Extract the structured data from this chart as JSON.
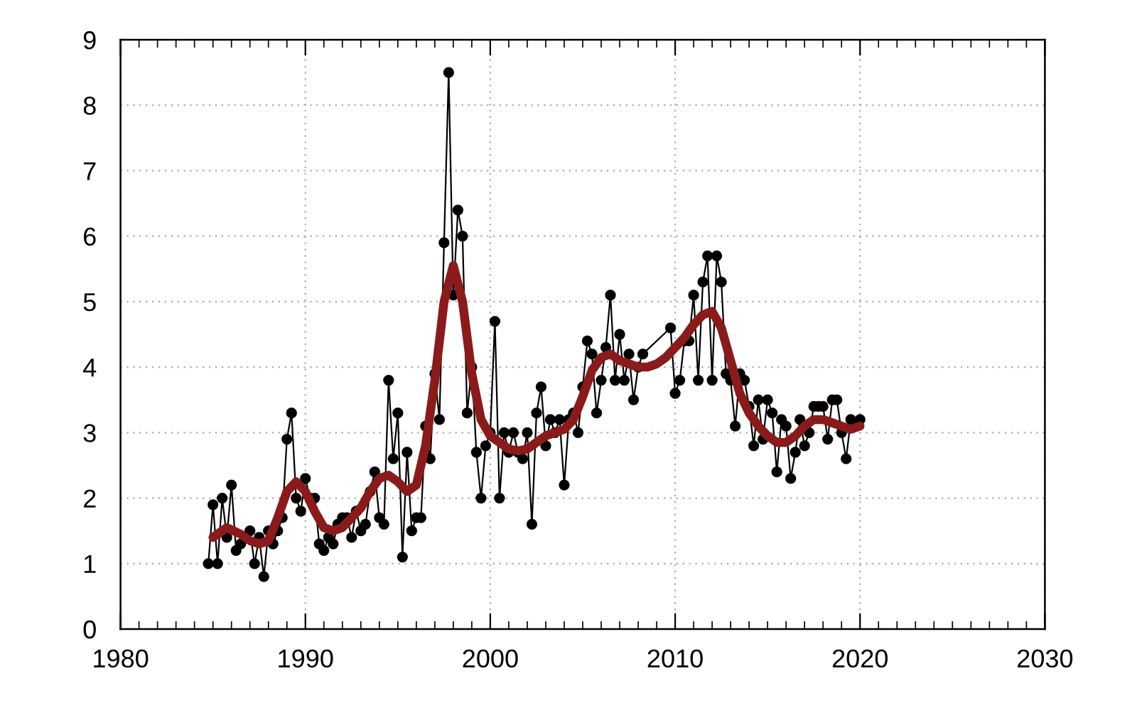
{
  "chart_data": {
    "type": "line",
    "xlim": [
      1980,
      2030
    ],
    "xticks": [
      1980,
      1990,
      2000,
      2010,
      2020,
      2030
    ],
    "ylim": [
      0,
      9
    ],
    "yticks": [
      0,
      1,
      2,
      3,
      4,
      5,
      6,
      7,
      8,
      9
    ],
    "grid": true,
    "legend": false,
    "series": [
      {
        "color": "#000000",
        "marker": "circle",
        "line_style": "solid",
        "x": [
          1984.75,
          1985,
          1985.25,
          1985.5,
          1985.75,
          1986,
          1986.25,
          1986.5,
          1986.75,
          1987,
          1987.25,
          1987.5,
          1987.75,
          1988,
          1988.25,
          1988.5,
          1988.75,
          1989,
          1989.25,
          1989.5,
          1989.75,
          1990,
          1990.25,
          1990.5,
          1990.75,
          1991,
          1991.25,
          1991.5,
          1991.75,
          1992,
          1992.25,
          1992.5,
          1992.75,
          1993,
          1993.25,
          1993.5,
          1993.75,
          1994,
          1994.25,
          1994.5,
          1994.75,
          1995,
          1995.25,
          1995.5,
          1995.75,
          1996,
          1996.25,
          1996.5,
          1996.75,
          1997,
          1997.25,
          1997.5,
          1997.75,
          1998,
          1998.25,
          1998.5,
          1998.75,
          1999,
          1999.25,
          1999.5,
          1999.75,
          2000,
          2000.25,
          2000.5,
          2000.75,
          2001,
          2001.25,
          2001.5,
          2001.75,
          2002,
          2002.25,
          2002.5,
          2002.75,
          2003,
          2003.25,
          2003.5,
          2003.75,
          2004,
          2004.25,
          2004.5,
          2004.75,
          2005,
          2005.25,
          2005.5,
          2005.75,
          2006,
          2006.25,
          2006.5,
          2006.75,
          2007,
          2007.25,
          2007.5,
          2007.75,
          2008,
          2008.25,
          2009.75,
          2010,
          2010.25,
          2010.5,
          2010.75,
          2011,
          2011.25,
          2011.5,
          2011.75,
          2012,
          2012.25,
          2012.5,
          2012.75,
          2013,
          2013.25,
          2013.5,
          2013.75,
          2014,
          2014.25,
          2014.5,
          2014.75,
          2015,
          2015.25,
          2015.5,
          2015.75,
          2016,
          2016.25,
          2016.5,
          2016.75,
          2017,
          2017.25,
          2017.5,
          2017.75,
          2018,
          2018.25,
          2018.5,
          2018.75,
          2019,
          2019.25,
          2019.5,
          2019.75,
          2020
        ],
        "values": [
          1.0,
          1.9,
          1.0,
          2.0,
          1.4,
          2.2,
          1.2,
          1.3,
          1.4,
          1.5,
          1.0,
          1.4,
          0.8,
          1.5,
          1.3,
          1.5,
          1.7,
          2.9,
          3.3,
          2.0,
          1.8,
          2.3,
          2.0,
          2.0,
          1.3,
          1.2,
          1.4,
          1.3,
          1.6,
          1.7,
          1.7,
          1.4,
          1.8,
          1.5,
          1.6,
          2.1,
          2.4,
          1.7,
          1.6,
          3.8,
          2.6,
          3.3,
          1.1,
          2.7,
          1.5,
          1.7,
          1.7,
          3.1,
          2.6,
          3.9,
          3.2,
          5.9,
          8.5,
          5.1,
          6.4,
          6.0,
          3.3,
          4.0,
          2.7,
          2.0,
          2.8,
          3.0,
          4.7,
          2.0,
          3.0,
          2.7,
          3.0,
          2.7,
          2.6,
          3.0,
          1.6,
          3.3,
          3.7,
          2.8,
          3.2,
          3.0,
          3.2,
          2.2,
          3.2,
          3.3,
          3.0,
          3.7,
          4.4,
          4.2,
          3.3,
          3.8,
          4.3,
          5.1,
          3.8,
          4.5,
          3.8,
          4.2,
          3.5,
          4.0,
          4.2,
          4.6,
          3.6,
          3.8,
          4.4,
          4.4,
          5.1,
          3.8,
          5.3,
          5.7,
          3.8,
          5.7,
          5.3,
          3.9,
          3.8,
          3.1,
          3.9,
          3.8,
          3.4,
          2.8,
          3.5,
          2.9,
          3.5,
          3.3,
          2.4,
          3.2,
          3.1,
          2.3,
          2.7,
          3.2,
          2.8,
          3.0,
          3.4,
          3.4,
          3.4,
          2.9,
          3.5,
          3.5,
          3.0,
          2.6,
          3.2,
          3.1,
          3.2
        ]
      },
      {
        "color": "#8b1a1a",
        "marker": "none",
        "line_style": "solid",
        "x": [
          1985,
          1985.75,
          1986.5,
          1987,
          1987.5,
          1988,
          1988.5,
          1989,
          1989.5,
          1990,
          1990.5,
          1991,
          1991.5,
          1992,
          1992.5,
          1993,
          1993.5,
          1994,
          1994.5,
          1995,
          1995.5,
          1996,
          1996.5,
          1997,
          1997.5,
          1998,
          1998.5,
          1999,
          1999.5,
          2000,
          2000.5,
          2001,
          2001.5,
          2002,
          2002.5,
          2003,
          2003.5,
          2004,
          2004.5,
          2005,
          2005.5,
          2006,
          2006.5,
          2007,
          2007.5,
          2008,
          2008.5,
          2009,
          2009.5,
          2010,
          2010.5,
          2011,
          2011.5,
          2012,
          2012.5,
          2013,
          2013.5,
          2014,
          2014.5,
          2015,
          2015.5,
          2016,
          2016.5,
          2017,
          2017.5,
          2018,
          2018.5,
          2019,
          2019.5,
          2020
        ],
        "values": [
          1.4,
          1.55,
          1.45,
          1.35,
          1.3,
          1.35,
          1.7,
          2.1,
          2.25,
          2.1,
          1.8,
          1.55,
          1.5,
          1.55,
          1.7,
          1.85,
          2.1,
          2.3,
          2.35,
          2.25,
          2.1,
          2.2,
          2.8,
          3.8,
          5.0,
          5.55,
          5.0,
          3.9,
          3.2,
          2.95,
          2.85,
          2.75,
          2.72,
          2.75,
          2.85,
          2.95,
          3.0,
          3.05,
          3.2,
          3.55,
          3.95,
          4.15,
          4.2,
          4.1,
          4.05,
          4.0,
          4.0,
          4.05,
          4.15,
          4.3,
          4.45,
          4.65,
          4.8,
          4.85,
          4.6,
          4.1,
          3.6,
          3.3,
          3.1,
          2.95,
          2.85,
          2.85,
          2.95,
          3.1,
          3.2,
          3.2,
          3.15,
          3.1,
          3.05,
          3.1
        ]
      }
    ]
  }
}
